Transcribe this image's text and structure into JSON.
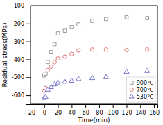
{
  "chart_data": {
    "type": "scatter",
    "xlabel": "Time(min)",
    "ylabel": "Residual stress(MPa)",
    "x": [
      0,
      2,
      5,
      10,
      15,
      20,
      30,
      40,
      50,
      70,
      90,
      120,
      150
    ],
    "series": [
      {
        "name": "900℃",
        "color": "#999999",
        "marker": "square",
        "values": [
          -490,
          -480,
          -415,
          -360,
          -315,
          -255,
          -240,
          -220,
          -205,
          -185,
          -175,
          -165,
          -170
        ]
      },
      {
        "name": "700℃",
        "color": "#e07070",
        "marker": "circle",
        "values": [
          -575,
          -560,
          -460,
          -440,
          -415,
          -395,
          -385,
          -370,
          -350,
          -345,
          -345,
          -348,
          -345
        ]
      },
      {
        "name": "530℃",
        "color": "#7777cc",
        "marker": "triangle",
        "values": [
          -615,
          -610,
          -570,
          -555,
          -540,
          -530,
          -525,
          -520,
          -510,
          -505,
          -500,
          -470,
          -465
        ]
      }
    ],
    "xlim": [
      -20,
      165
    ],
    "ylim": [
      -650,
      -100
    ],
    "xticks": [
      -20,
      0,
      20,
      40,
      60,
      80,
      100,
      120,
      140,
      160
    ],
    "yticks": [
      -600,
      -500,
      -400,
      -300,
      -200,
      -100
    ],
    "grid": false,
    "legend": "lower right"
  }
}
